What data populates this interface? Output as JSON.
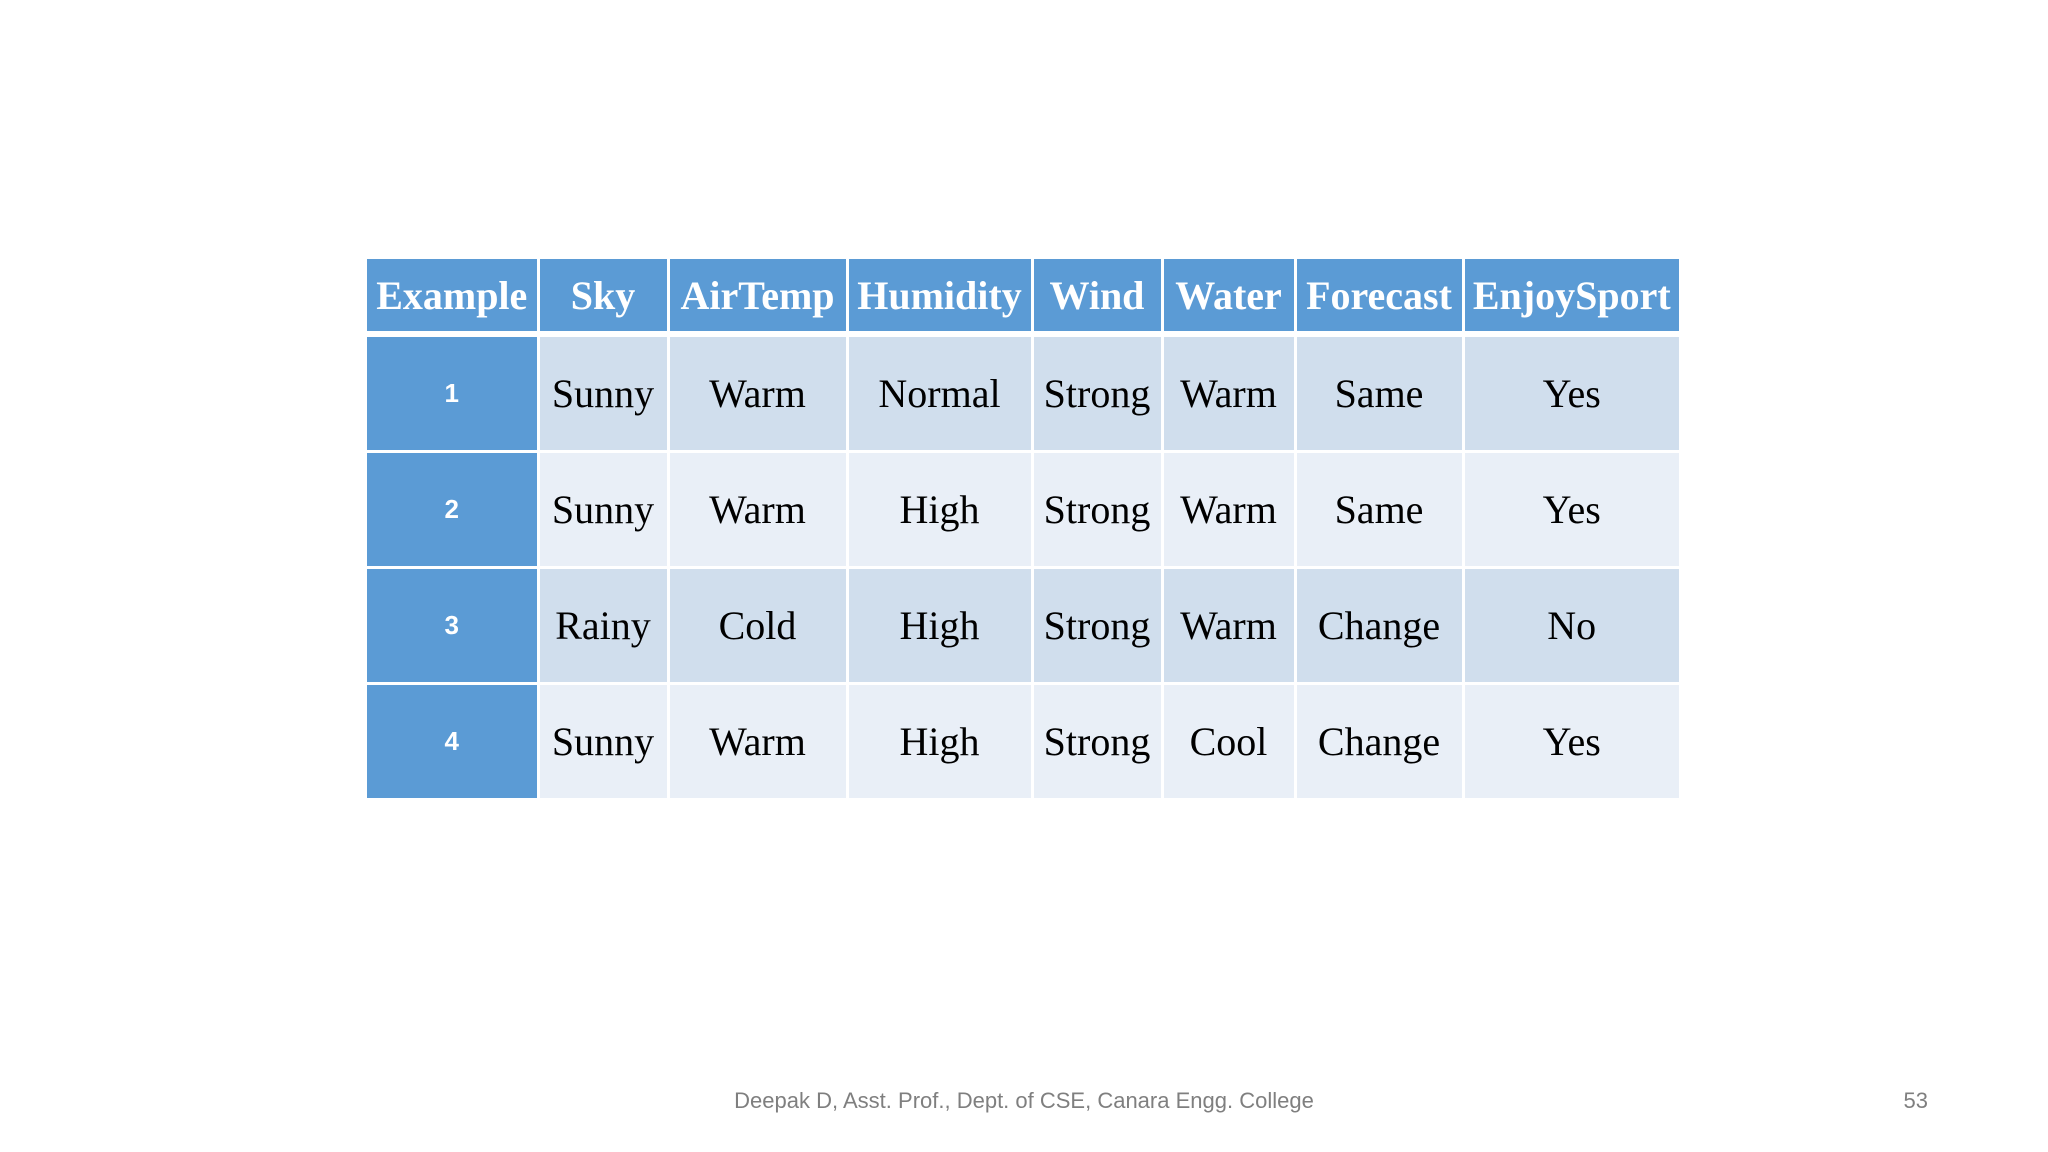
{
  "table": {
    "headers": [
      "Example",
      "Sky",
      "AirTemp",
      "Humidity",
      "Wind",
      "Water",
      "Forecast",
      "EnjoySport"
    ],
    "rows": [
      [
        "1",
        "Sunny",
        "Warm",
        "Normal",
        "Strong",
        "Warm",
        "Same",
        "Yes"
      ],
      [
        "2",
        "Sunny",
        "Warm",
        "High",
        "Strong",
        "Warm",
        "Same",
        "Yes"
      ],
      [
        "3",
        "Rainy",
        "Cold",
        "High",
        "Strong",
        "Warm",
        "Change",
        "No"
      ],
      [
        "4",
        "Sunny",
        "Warm",
        "High",
        "Strong",
        "Cool",
        "Change",
        "Yes"
      ]
    ]
  },
  "footer": {
    "text": "Deepak D, Asst. Prof., Dept. of CSE, Canara Engg. College",
    "page_number": "53"
  },
  "colors": {
    "header_background": "#5b9bd5",
    "row_odd_background": "#d0deed",
    "row_even_background": "#e9eff7",
    "footer_text": "#7f7f7f"
  }
}
